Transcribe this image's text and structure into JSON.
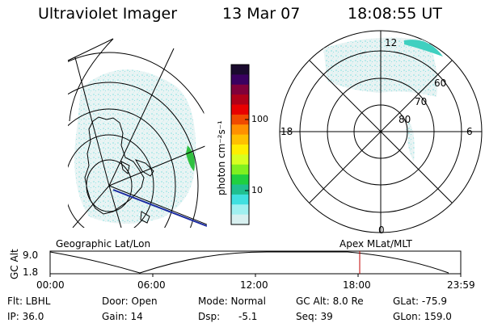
{
  "header": {
    "instrument": "Ultraviolet Imager",
    "date": "13 Mar 07",
    "time": "18:08:55 UT"
  },
  "geo_panel": {
    "label": "Geographic Lat/Lon"
  },
  "apex_panel": {
    "label": "Apex MLat/MLT",
    "mlt_labels": [
      "12",
      "18",
      "6",
      "0"
    ],
    "mlat_labels": [
      "60",
      "70",
      "80"
    ]
  },
  "colorbar": {
    "unit_label": "photon cm⁻²s⁻¹",
    "ticks": [
      "100",
      "10"
    ],
    "scale": "log",
    "colors": [
      "#1a0a2e",
      "#3a0060",
      "#80003a",
      "#b00018",
      "#e80000",
      "#f04a00",
      "#ff9000",
      "#ffc000",
      "#ffee00",
      "#d8ff20",
      "#80f020",
      "#20d040",
      "#20c090",
      "#40e0e0",
      "#a0f0f0",
      "#d8f0f0"
    ]
  },
  "altitude_plot": {
    "y_label": "GC Alt",
    "y_ticks": [
      "9.0",
      "1.8"
    ],
    "x_ticks": [
      "00:00",
      "06:00",
      "12:00",
      "18:00",
      "23:59"
    ],
    "marker_time": "18:08:55"
  },
  "status": {
    "flt": "Flt: LBHL",
    "door": "Door: Open",
    "mode": "Mode: Normal",
    "gc_alt": "GC Alt: 8.0 Re",
    "glat": "GLat: -75.9",
    "ip": "IP: 36.0",
    "gain": "Gain: 14",
    "dsp_label": "Dsp:",
    "dsp_value": "-5.1",
    "seq": "Seq: 39",
    "glon": "GLon: 159.0"
  }
}
